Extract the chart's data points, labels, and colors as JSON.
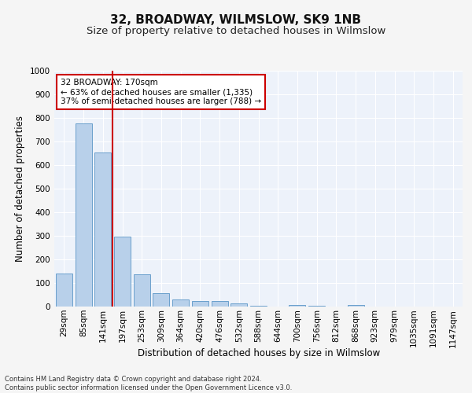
{
  "title": "32, BROADWAY, WILMSLOW, SK9 1NB",
  "subtitle": "Size of property relative to detached houses in Wilmslow",
  "xlabel": "Distribution of detached houses by size in Wilmslow",
  "ylabel": "Number of detached properties",
  "categories": [
    "29sqm",
    "85sqm",
    "141sqm",
    "197sqm",
    "253sqm",
    "309sqm",
    "364sqm",
    "420sqm",
    "476sqm",
    "532sqm",
    "588sqm",
    "644sqm",
    "700sqm",
    "756sqm",
    "812sqm",
    "868sqm",
    "923sqm",
    "979sqm",
    "1035sqm",
    "1091sqm",
    "1147sqm"
  ],
  "values": [
    140,
    778,
    655,
    297,
    138,
    56,
    29,
    22,
    22,
    13,
    5,
    0,
    7,
    5,
    0,
    8,
    0,
    0,
    0,
    0,
    0
  ],
  "bar_color": "#b8d0ea",
  "bar_edge_color": "#6aa0cc",
  "vline_x_index": 2,
  "vline_color": "#cc0000",
  "annotation_text": "32 BROADWAY: 170sqm\n← 63% of detached houses are smaller (1,335)\n37% of semi-detached houses are larger (788) →",
  "annotation_box_color": "#ffffff",
  "annotation_box_edge": "#cc0000",
  "footer_text": "Contains HM Land Registry data © Crown copyright and database right 2024.\nContains public sector information licensed under the Open Government Licence v3.0.",
  "ylim": [
    0,
    1000
  ],
  "yticks": [
    0,
    100,
    200,
    300,
    400,
    500,
    600,
    700,
    800,
    900,
    1000
  ],
  "background_color": "#edf2fa",
  "grid_color": "#ffffff",
  "title_fontsize": 11,
  "subtitle_fontsize": 9.5,
  "label_fontsize": 8.5,
  "tick_fontsize": 7.5,
  "footer_fontsize": 6,
  "annotation_fontsize": 7.5
}
